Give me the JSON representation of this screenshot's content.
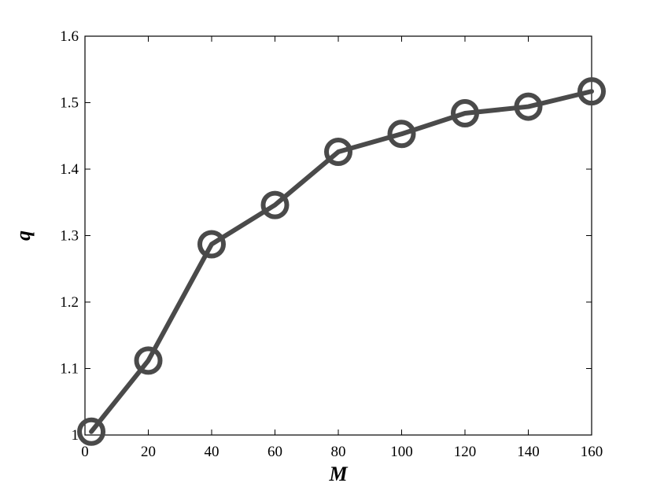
{
  "chart_data": {
    "type": "line",
    "title": "",
    "xlabel": "M",
    "ylabel": "q",
    "xlim": [
      0,
      160
    ],
    "ylim": [
      1.0,
      1.6
    ],
    "xticks": [
      0,
      20,
      40,
      60,
      80,
      100,
      120,
      140,
      160
    ],
    "yticks": [
      1.0,
      1.1,
      1.2,
      1.3,
      1.4,
      1.5,
      1.6
    ],
    "xtick_labels": [
      "0",
      "20",
      "40",
      "60",
      "80",
      "100",
      "120",
      "140",
      "160"
    ],
    "ytick_labels": [
      "1",
      "1.1",
      "1.2",
      "1.3",
      "1.4",
      "1.5",
      "1.6"
    ],
    "grid": false,
    "legend": "none",
    "marker": "circle",
    "series": [
      {
        "color": "#4a4a4a",
        "x": [
          2,
          20,
          40,
          60,
          80,
          100,
          120,
          140,
          160
        ],
        "y": [
          1.005,
          1.112,
          1.287,
          1.346,
          1.426,
          1.453,
          1.484,
          1.494,
          1.517
        ]
      }
    ]
  }
}
